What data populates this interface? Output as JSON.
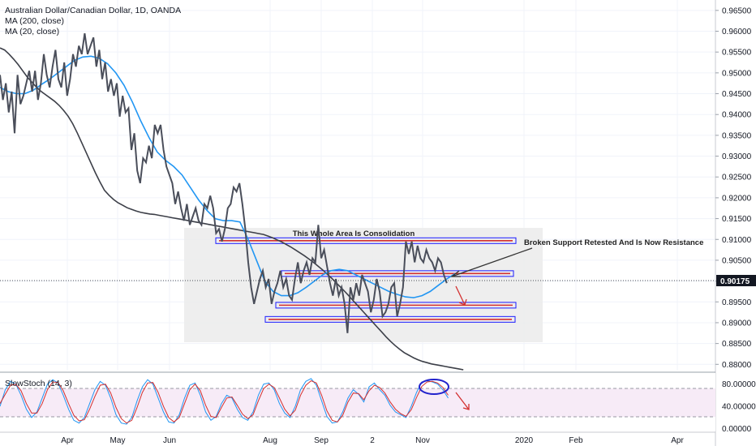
{
  "header": {
    "title": "Australian Dollar/Canadian Dollar, 1D, OANDA",
    "legend_ma200": "MA (200, close)",
    "legend_ma20": "MA (20, close)",
    "stoch_label": "SlowStoch (14, 3)"
  },
  "chart_data": [
    {
      "type": "line",
      "title": "Australian Dollar/Canadian Dollar, 1D, OANDA",
      "xlabel": "",
      "ylabel": "",
      "x_ticks": [
        "Apr",
        "May",
        "Jun",
        "Aug",
        "Sep",
        "2",
        "Nov",
        "2020",
        "Feb",
        "Apr"
      ],
      "y_ticks": [
        "0.96500",
        "0.96000",
        "0.95500",
        "0.95000",
        "0.94500",
        "0.94000",
        "0.93500",
        "0.93000",
        "0.92500",
        "0.92000",
        "0.91500",
        "0.91000",
        "0.90500",
        "0.90000",
        "0.89500",
        "0.89000",
        "0.88500",
        "0.88000"
      ],
      "ylim": [
        0.8785,
        0.9675
      ],
      "current_price": "0.90175",
      "grid": true,
      "series": [
        {
          "name": "Australian Dollar/Canadian Dollar",
          "color": "#4a4e5a",
          "values": [
            0.9495,
            0.9435,
            0.9475,
            0.9405,
            0.9455,
            0.9355,
            0.9495,
            0.9425,
            0.9445,
            0.9475,
            0.9505,
            0.9455,
            0.9505,
            0.9435,
            0.9475,
            0.9545,
            0.9495,
            0.9465,
            0.9515,
            0.9555,
            0.9485,
            0.9465,
            0.9525,
            0.9445,
            0.9485,
            0.9545,
            0.9515,
            0.9565,
            0.9545,
            0.9595,
            0.9545,
            0.9565,
            0.9585,
            0.9515,
            0.9555,
            0.9485,
            0.9525,
            0.9455,
            0.9485,
            0.9445,
            0.9475,
            0.9395,
            0.9445,
            0.9405,
            0.9415,
            0.9315,
            0.9355,
            0.9265,
            0.9235,
            0.9295,
            0.9285,
            0.9325,
            0.9295,
            0.9375,
            0.9355,
            0.9375,
            0.9315,
            0.9275,
            0.9255,
            0.9235,
            0.9185,
            0.9215,
            0.9175,
            0.9145,
            0.9185,
            0.9135,
            0.9155,
            0.9175,
            0.9145,
            0.9135,
            0.9185,
            0.9175,
            0.9205,
            0.9175,
            0.9115,
            0.9125,
            0.9095,
            0.9125,
            0.9175,
            0.9185,
            0.9225,
            0.9215,
            0.9235,
            0.9185,
            0.9125,
            0.9045,
            0.8985,
            0.8945,
            0.8975,
            0.9005,
            0.9025,
            0.8985,
            0.9005,
            0.8945,
            0.8975,
            0.8995,
            0.9025,
            0.8985,
            0.9005,
            0.8965,
            0.8955,
            0.9005,
            0.9045,
            0.8995,
            0.9025,
            0.9045,
            0.9015,
            0.9055,
            0.9045,
            0.9135,
            0.9055,
            0.9075,
            0.9035,
            0.8995,
            0.8965,
            0.9005,
            0.8965,
            0.8985,
            0.8945,
            0.8875,
            0.8985,
            0.8955,
            0.8995,
            0.8965,
            0.9015,
            0.8995,
            0.8975,
            0.8925,
            0.8955,
            0.9005,
            0.8975,
            0.8915,
            0.8925,
            0.8945,
            0.8985,
            0.8995,
            0.8915,
            0.8945,
            0.8985,
            0.9095,
            0.9065,
            0.9095,
            0.9045,
            0.9085,
            0.9055,
            0.9045,
            0.9075,
            0.9055,
            0.9045,
            0.9025,
            0.9055,
            0.9045,
            0.9015,
            0.8995
          ]
        },
        {
          "name": "MA (20, close)",
          "color": "#2196f3",
          "values": [
            0.9465,
            0.9455,
            0.945,
            0.945,
            0.9458,
            0.9472,
            0.9485,
            0.95,
            0.9515,
            0.953,
            0.9538,
            0.954,
            0.9535,
            0.9522,
            0.95,
            0.947,
            0.943,
            0.9385,
            0.9345,
            0.931,
            0.929,
            0.9275,
            0.9255,
            0.9225,
            0.9195,
            0.917,
            0.915,
            0.9145,
            0.9145,
            0.9142,
            0.91,
            0.905,
            0.9,
            0.8975,
            0.8965,
            0.8965,
            0.8972,
            0.8985,
            0.9,
            0.9015,
            0.9025,
            0.9028,
            0.9025,
            0.9015,
            0.9005,
            0.8995,
            0.8985,
            0.8975,
            0.8968,
            0.8962,
            0.896,
            0.8965,
            0.8975,
            0.899,
            0.9005,
            0.9018
          ]
        },
        {
          "name": "MA (200, close)",
          "color": "#3c3f48",
          "values": [
            0.956,
            0.9555,
            0.9545,
            0.9533,
            0.952,
            0.9505,
            0.949,
            0.9478,
            0.9466,
            0.9456,
            0.9448,
            0.944,
            0.9432,
            0.9422,
            0.941,
            0.9396,
            0.9378,
            0.9356,
            0.9332,
            0.9308,
            0.9284,
            0.926,
            0.9238,
            0.9218,
            0.9206,
            0.9196,
            0.9188,
            0.9182,
            0.9176,
            0.9172,
            0.9168,
            0.9165,
            0.9163,
            0.9161,
            0.916,
            0.9158,
            0.9156,
            0.9154,
            0.9152,
            0.915,
            0.9148,
            0.9146,
            0.9144,
            0.9142,
            0.914,
            0.9138,
            0.9136,
            0.9134,
            0.9132,
            0.913,
            0.9128,
            0.9126,
            0.9124,
            0.9122,
            0.912,
            0.9118,
            0.9116,
            0.9114,
            0.9112,
            0.9108,
            0.9104,
            0.9099,
            0.9094,
            0.9088,
            0.9082,
            0.9075,
            0.9068,
            0.9061,
            0.9053,
            0.9045,
            0.9036,
            0.9027,
            0.9017,
            0.9007,
            0.8996,
            0.8985,
            0.8974,
            0.8962,
            0.895,
            0.8938,
            0.8926,
            0.8914,
            0.8902,
            0.889,
            0.8878,
            0.8866,
            0.8855,
            0.8845,
            0.8836,
            0.8828,
            0.8822,
            0.8816,
            0.8811,
            0.8807,
            0.8804,
            0.8801,
            0.8799,
            0.8797,
            0.8795,
            0.8793,
            0.8791,
            0.8789,
            0.8787
          ]
        }
      ],
      "annotations": {
        "consolidation_label": "This Whole Area Is Consolidation",
        "resistance_label": "Broken Support Retested And Is Now Resistance",
        "levels": [
          0.9097,
          0.9018,
          0.8942,
          0.8908
        ],
        "box_range": [
          0.8875,
          0.9137
        ]
      },
      "colors": {
        "price": "#4a4e5a",
        "ma20": "#2196f3",
        "ma200": "#3c3f48",
        "zone": "#ebebeb",
        "level_box": "#1a1aff",
        "level_line": "#d32f2f",
        "arrow_down": "#d32f2f",
        "price_tag": "#131722"
      }
    },
    {
      "type": "line",
      "title": "SlowStoch (14, 3)",
      "y_ticks": [
        "80.00000",
        "40.00000",
        "0.00000"
      ],
      "ylim": [
        -5,
        100
      ],
      "bands": [
        20,
        80
      ],
      "series": [
        {
          "name": "%K",
          "color": "#2196f3",
          "values": [
            40,
            70,
            85,
            80,
            60,
            35,
            20,
            30,
            55,
            80,
            88,
            82,
            60,
            35,
            15,
            10,
            20,
            45,
            70,
            85,
            78,
            55,
            25,
            10,
            8,
            20,
            50,
            75,
            88,
            80,
            55,
            30,
            12,
            10,
            25,
            55,
            78,
            82,
            60,
            30,
            15,
            22,
            45,
            60,
            55,
            35,
            20,
            15,
            30,
            60,
            80,
            82,
            70,
            45,
            28,
            20,
            40,
            70,
            85,
            90,
            78,
            50,
            22,
            10,
            12,
            30,
            55,
            70,
            62,
            48,
            75,
            82,
            70,
            60,
            42,
            30,
            25,
            20,
            40,
            65,
            84,
            86,
            84,
            80,
            70,
            55
          ]
        },
        {
          "name": "%D",
          "color": "#d32f2f",
          "values": [
            45,
            62,
            78,
            80,
            68,
            45,
            28,
            28,
            45,
            70,
            84,
            83,
            68,
            45,
            24,
            14,
            16,
            35,
            58,
            78,
            80,
            64,
            38,
            18,
            10,
            15,
            38,
            65,
            82,
            83,
            65,
            40,
            20,
            12,
            20,
            45,
            70,
            80,
            68,
            42,
            22,
            20,
            38,
            55,
            57,
            42,
            26,
            18,
            25,
            50,
            72,
            80,
            74,
            55,
            35,
            23,
            33,
            60,
            78,
            86,
            82,
            60,
            32,
            15,
            12,
            24,
            48,
            64,
            63,
            52,
            68,
            78,
            74,
            64,
            48,
            35,
            27,
            22,
            34,
            56,
            76,
            84,
            85,
            82,
            74,
            60
          ]
        }
      ]
    }
  ]
}
